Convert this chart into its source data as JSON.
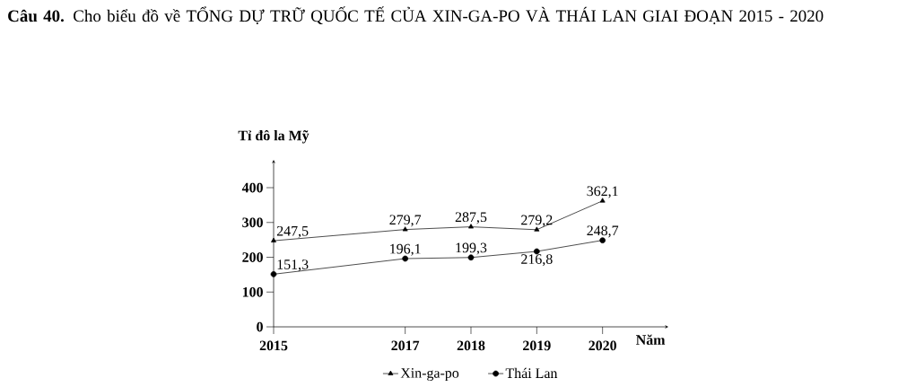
{
  "chart_data": {
    "type": "line",
    "title": "**Câu 40.** Cho biểu đồ về TỔNG DỰ TRỮ QUỐC TẾ CỦA XIN-GA-PO VÀ THÁI LAN GIAI ĐOẠN 2015 - 2020",
    "ylabel": "Tỉ đô la Mỹ",
    "xlabel": "Năm",
    "x": [
      2015,
      2017,
      2018,
      2019,
      2020
    ],
    "xlim": [
      2015,
      2021
    ],
    "xticks": [
      2015,
      2017,
      2018,
      2019,
      2020
    ],
    "ylim": [
      0,
      480
    ],
    "yticks": [
      0,
      100,
      200,
      300,
      400
    ],
    "series": [
      {
        "name": "Xin-ga-po",
        "color": "#000000",
        "marker": "triangle",
        "values": [
          247.5,
          279.7,
          287.5,
          279.2,
          362.1
        ],
        "value_labels": [
          "247,5",
          "279,7",
          "287,5",
          "279,2",
          "362,1"
        ]
      },
      {
        "name": "Thái Lan",
        "color": "#000000",
        "marker": "circle",
        "values": [
          151.3,
          196.1,
          199.3,
          216.8,
          248.7
        ],
        "value_labels": [
          "151,3",
          "196,1",
          "199,3",
          "216,8",
          "248,7"
        ]
      }
    ],
    "legend": "bottom",
    "grid": false
  }
}
